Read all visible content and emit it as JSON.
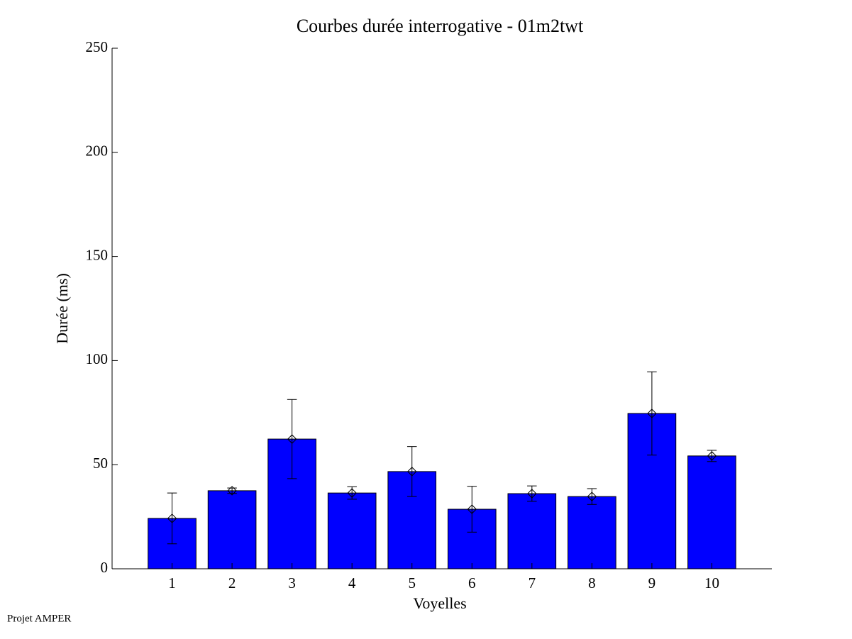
{
  "chart_data": {
    "type": "bar",
    "title": "Courbes durée interrogative - 01m2twt",
    "x_label": "Voyelles",
    "y_label": "Durée (ms)",
    "x": [
      1,
      2,
      3,
      4,
      5,
      6,
      7,
      8,
      9,
      10
    ],
    "values": [
      24.2,
      37.5,
      62.3,
      36.4,
      46.7,
      28.6,
      36.1,
      34.7,
      74.6,
      54.2
    ],
    "errors": [
      12.2,
      1.3,
      19,
      3,
      12,
      11,
      3.7,
      3.8,
      20,
      2.7
    ],
    "color": "#0000ff",
    "xlim": [
      0,
      11
    ],
    "xticks": [
      1,
      2,
      3,
      4,
      5,
      6,
      7,
      8,
      9,
      10
    ],
    "ylim": [
      0,
      250
    ],
    "yticks": [
      0,
      50,
      100,
      150,
      200,
      250
    ],
    "footer": "Projet AMPER"
  }
}
